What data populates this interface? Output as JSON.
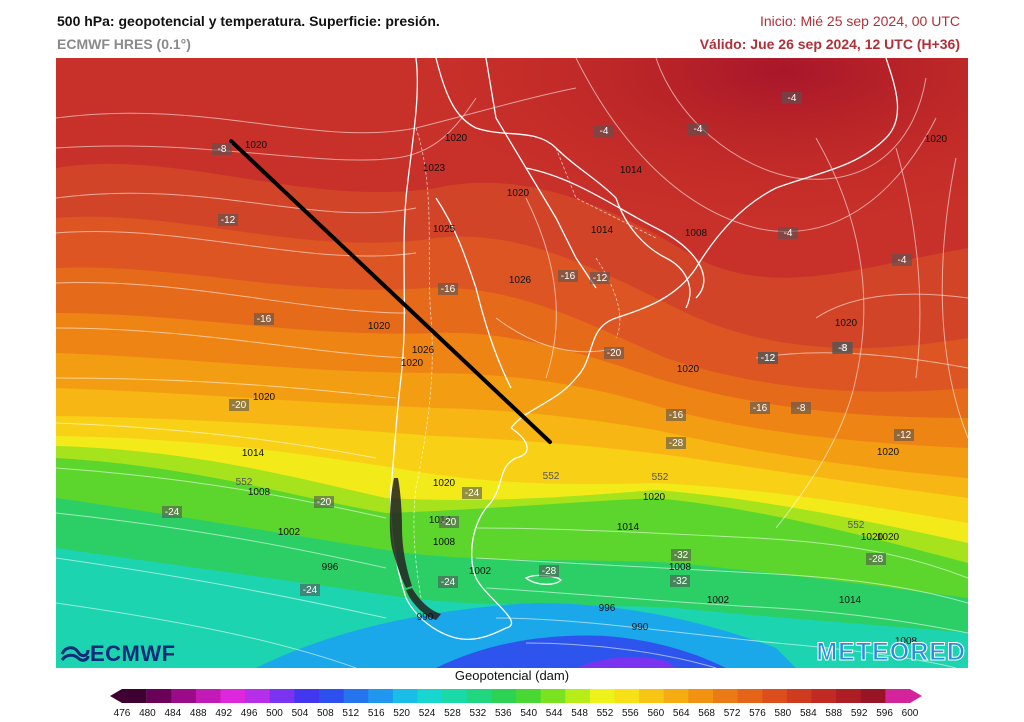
{
  "header": {
    "title": "500 hPa: geopotencial y temperatura. Superficie: presión.",
    "model": "ECMWF HRES (0.1°)",
    "run": "Inicio: Mié 25 sep 2024, 00 UTC",
    "valid": "Válido: Jue 26 sep 2024, 12 UTC (H+36)"
  },
  "logos": {
    "left": "ECMWF",
    "right": "METEORED"
  },
  "colorbar": {
    "title": "Geopotencial (dam)",
    "ticks": [
      "476",
      "480",
      "484",
      "488",
      "492",
      "496",
      "500",
      "504",
      "508",
      "512",
      "516",
      "520",
      "524",
      "528",
      "532",
      "536",
      "540",
      "544",
      "548",
      "552",
      "556",
      "560",
      "564",
      "568",
      "572",
      "576",
      "580",
      "584",
      "588",
      "592",
      "596",
      "600"
    ],
    "colors": [
      "#3d0030",
      "#6b0059",
      "#9b0a88",
      "#c21bb5",
      "#de27dc",
      "#b62ee8",
      "#7a33ee",
      "#4236ee",
      "#2d4fee",
      "#2673ee",
      "#1f97ee",
      "#1abde6",
      "#17d6cf",
      "#1ad9a8",
      "#20d67e",
      "#2cd254",
      "#49d733",
      "#7be222",
      "#b6ec18",
      "#ecf21a",
      "#f7e017",
      "#f8c514",
      "#f5ab12",
      "#f19212",
      "#ec7a14",
      "#e56417",
      "#dc4f1c",
      "#cf3b1f",
      "#c02a22",
      "#ad1d24",
      "#971525",
      "#d3249c"
    ]
  },
  "map_labels": {
    "pressure": [
      "1020",
      "1020",
      "1014",
      "1020",
      "1008",
      "1020",
      "1014",
      "1026",
      "1025",
      "1023",
      "1020",
      "1020",
      "1026",
      "1020",
      "1020",
      "1020",
      "1014",
      "1008",
      "1002",
      "996",
      "990",
      "1020",
      "1014",
      "1008",
      "1002",
      "996",
      "990",
      "1020",
      "1014",
      "1008",
      "1002",
      "1014",
      "1020",
      "1020",
      "1020",
      "1008"
    ],
    "temperature": [
      "-8",
      "-12",
      "-16",
      "-20",
      "-24",
      "-20",
      "-16",
      "-16",
      "-12",
      "-8",
      "-4",
      "-4",
      "-4",
      "-4",
      "-4",
      "-20",
      "-20",
      "-24",
      "-28",
      "-24",
      "-24",
      "-28",
      "-32",
      "-32",
      "-28",
      "-24",
      "-16",
      "-12",
      "-8",
      "-12",
      "-8",
      "-24",
      "-16",
      "-12"
    ],
    "isohypse": [
      "552",
      "552",
      "552",
      "552"
    ]
  }
}
